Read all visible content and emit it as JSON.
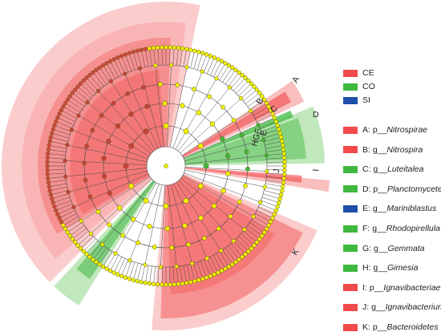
{
  "groups": [
    {
      "name": "CE",
      "color": "#f24a4a"
    },
    {
      "name": "CO",
      "color": "#3fb83f"
    },
    {
      "name": "SI",
      "color": "#1f4fa8"
    }
  ],
  "taxa": [
    {
      "letter": "A",
      "prefix": "p__",
      "name": "Nitrospirae",
      "group": "CE"
    },
    {
      "letter": "B",
      "prefix": "g__",
      "name": "Nitrospira",
      "group": "CE"
    },
    {
      "letter": "C",
      "prefix": "g__",
      "name": "Luteitalea",
      "group": "CO"
    },
    {
      "letter": "D",
      "prefix": "p__",
      "name": "Planctomycetes",
      "group": "CO"
    },
    {
      "letter": "E",
      "prefix": "g__",
      "name": "Mariniblastus",
      "group": "SI"
    },
    {
      "letter": "F",
      "prefix": "g__",
      "name": "Rhodopirellula",
      "group": "CO"
    },
    {
      "letter": "G",
      "prefix": "g__",
      "name": "Gemmata",
      "group": "CO"
    },
    {
      "letter": "H",
      "prefix": "g__",
      "name": "Gimesia",
      "group": "CO"
    },
    {
      "letter": "I",
      "prefix": "p__",
      "name": "Ignavibacteriae",
      "group": "CE"
    },
    {
      "letter": "J",
      "prefix": "g__",
      "name": "Ignavibacterium",
      "group": "CE"
    },
    {
      "letter": "K",
      "prefix": "p__",
      "name": "Bacteroidetes",
      "group": "CE"
    }
  ],
  "clade_marker_labels": [
    "A",
    "B",
    "C",
    "D",
    "HGF",
    "E",
    "J",
    "I",
    "K"
  ],
  "colors": {
    "ce_dark": "#f24a4a",
    "ce_light": "#f7a3a3",
    "co_dark": "#3fb83f",
    "co_light": "#a6dd9f",
    "node_yellow": "#f2f200",
    "node_border": "#5a5a00",
    "branch": "#4a4a4a"
  }
}
